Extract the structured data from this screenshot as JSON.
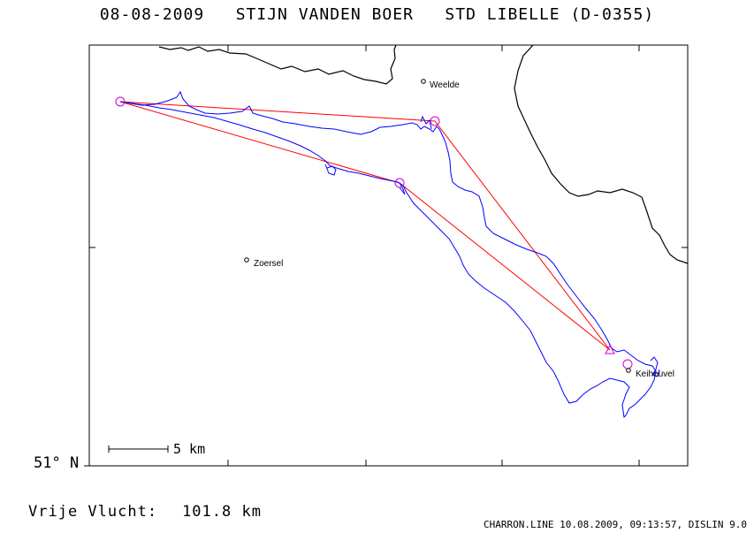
{
  "title": "08-08-2009   STIJN VANDEN BOER   STD LIBELLE (D-0355)",
  "lat_label": "51° N",
  "distance": {
    "label": "Vrije Vlucht:",
    "value": "101.8 km"
  },
  "footer": "CHARRON.LINE 10.08.2009, 09:13:57, DISLIN 9.0",
  "scale": {
    "label": "5 km"
  },
  "towns": [
    {
      "name": "Weelde"
    },
    {
      "name": "Zoersel"
    },
    {
      "name": "Keiheuvel"
    }
  ],
  "colors": {
    "track": "#0000ff",
    "task": "#ff0000",
    "turnpoint": "#cc00cc",
    "border": "#000000"
  }
}
